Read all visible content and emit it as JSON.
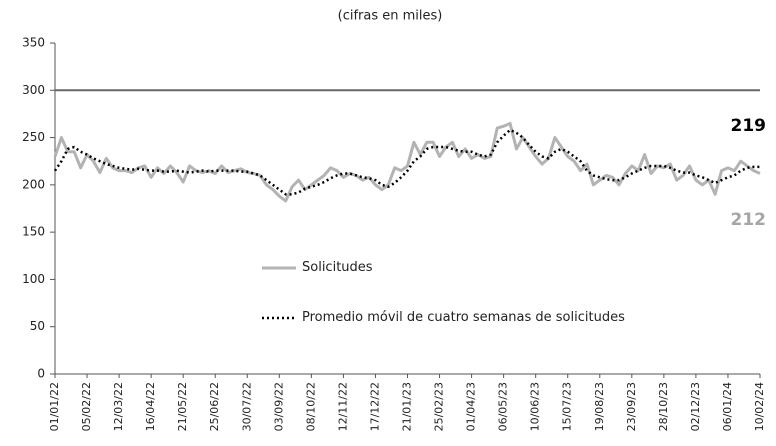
{
  "chart_data": {
    "type": "line",
    "subtitle": "(cifras en miles)",
    "categories": [
      "01/01/22",
      null,
      null,
      null,
      null,
      "05/02/22",
      null,
      null,
      null,
      null,
      "12/03/22",
      null,
      null,
      null,
      null,
      "16/04/22",
      null,
      null,
      null,
      null,
      "21/05/22",
      null,
      null,
      null,
      null,
      "25/06/22",
      null,
      null,
      null,
      null,
      "30/07/22",
      null,
      null,
      null,
      null,
      "03/09/22",
      null,
      null,
      null,
      null,
      "08/10/22",
      null,
      null,
      null,
      null,
      "12/11/22",
      null,
      null,
      null,
      null,
      "17/12/22",
      null,
      null,
      null,
      null,
      "21/01/23",
      null,
      null,
      null,
      null,
      "25/02/23",
      null,
      null,
      null,
      null,
      "01/04/23",
      null,
      null,
      null,
      null,
      "06/05/23",
      null,
      null,
      null,
      null,
      "10/06/23",
      null,
      null,
      null,
      null,
      "15/07/23",
      null,
      null,
      null,
      null,
      "19/08/23",
      null,
      null,
      null,
      null,
      "23/09/23",
      null,
      null,
      null,
      null,
      "28/10/23",
      null,
      null,
      null,
      null,
      "02/12/23",
      null,
      null,
      null,
      null,
      "06/01/24",
      null,
      null,
      null,
      null,
      "10/02/24"
    ],
    "series": [
      {
        "name": "Solicitudes",
        "color": "#b3b3b3",
        "style": "solid",
        "values": [
          230,
          250,
          235,
          235,
          218,
          232,
          225,
          213,
          228,
          218,
          215,
          215,
          213,
          218,
          220,
          208,
          218,
          212,
          220,
          213,
          203,
          220,
          215,
          213,
          215,
          212,
          220,
          213,
          215,
          217,
          213,
          212,
          210,
          200,
          195,
          188,
          183,
          198,
          205,
          195,
          200,
          205,
          210,
          218,
          215,
          208,
          212,
          210,
          205,
          208,
          200,
          195,
          200,
          218,
          215,
          220,
          245,
          232,
          245,
          245,
          230,
          240,
          245,
          230,
          238,
          228,
          232,
          228,
          230,
          260,
          262,
          265,
          238,
          250,
          240,
          230,
          222,
          228,
          250,
          240,
          230,
          225,
          215,
          222,
          200,
          205,
          210,
          208,
          200,
          212,
          220,
          215,
          232,
          212,
          220,
          218,
          222,
          205,
          210,
          220,
          205,
          200,
          205,
          190,
          215,
          218,
          215,
          225,
          220,
          215,
          212
        ]
      },
      {
        "name": "Promedio móvil de cuatro semanas de solicitudes",
        "color": "#000000",
        "style": "dotted",
        "values": [
          215,
          225,
          238,
          240,
          235,
          232,
          228,
          225,
          222,
          220,
          218,
          217,
          216,
          217,
          216,
          215,
          215,
          214,
          214,
          215,
          214,
          213,
          214,
          215,
          214,
          215,
          215,
          215,
          215,
          214,
          214,
          212,
          210,
          205,
          200,
          195,
          190,
          190,
          192,
          196,
          198,
          200,
          203,
          207,
          210,
          212,
          212,
          210,
          208,
          207,
          205,
          200,
          198,
          202,
          208,
          215,
          225,
          230,
          238,
          240,
          240,
          240,
          238,
          236,
          235,
          235,
          232,
          230,
          232,
          245,
          252,
          258,
          255,
          250,
          242,
          235,
          230,
          228,
          235,
          238,
          235,
          230,
          225,
          215,
          210,
          208,
          206,
          205,
          205,
          208,
          212,
          215,
          218,
          220,
          220,
          220,
          218,
          215,
          213,
          213,
          210,
          208,
          205,
          202,
          205,
          208,
          210,
          215,
          218,
          219,
          219
        ]
      }
    ],
    "reference_line": 300,
    "annotations": [
      {
        "text": "219",
        "value": 219,
        "color": "#000000"
      },
      {
        "text": "212",
        "value": 212,
        "color": "#a6a6a6"
      }
    ],
    "ylim": [
      0,
      350
    ],
    "yticks": [
      0,
      50,
      100,
      150,
      200,
      250,
      300,
      350
    ]
  }
}
